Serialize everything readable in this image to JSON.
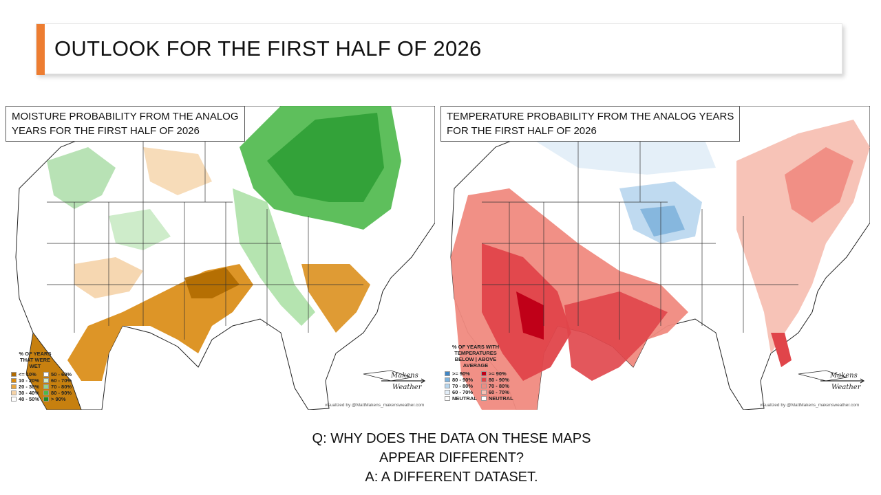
{
  "slide": {
    "title": "OUTLOOK FOR THE FIRST HALF OF 2026",
    "accent_color": "#ed7d31"
  },
  "maps": [
    {
      "title_line1": "MOISTURE PROBABILITY FROM THE ANALOG",
      "title_line2": "YEARS FOR THE FIRST HALF OF 2026",
      "legend_heading": [
        "% OF YEARS",
        "THAT WERE",
        "WET"
      ],
      "legend_left": [
        {
          "label": "<= 10%",
          "color": "#b06a00"
        },
        {
          "label": "10 - 20%",
          "color": "#d98a10"
        },
        {
          "label": "20 - 30%",
          "color": "#e8a540"
        },
        {
          "label": "30 - 40%",
          "color": "#f5d3a8"
        },
        {
          "label": "40 - 50%",
          "color": "#ffffff"
        }
      ],
      "legend_right": [
        {
          "label": "50 - 60%",
          "color": "#ffffff"
        },
        {
          "label": "60 - 70%",
          "color": "#cdebc9"
        },
        {
          "label": "70 - 80%",
          "color": "#8fd48a"
        },
        {
          "label": "80 - 90%",
          "color": "#4cb84a"
        },
        {
          "label": "> 90%",
          "color": "#1e8a22"
        }
      ],
      "brand": [
        "Makens",
        "Weather"
      ],
      "credit": "visualized by @MattMakens_makensweather.com"
    },
    {
      "title_line1": "TEMPERATURE PROBABILITY FROM THE ANALOG YEARS",
      "title_line2": "FOR THE FIRST HALF OF 2026",
      "legend_heading": [
        "% OF YEARS WITH",
        "TEMPERATURES",
        "BELOW | ABOVE",
        "AVERAGE"
      ],
      "legend_left": [
        {
          "label": ">= 90%",
          "color": "#3f86c6"
        },
        {
          "label": "80 - 90%",
          "color": "#7fb3dc"
        },
        {
          "label": "70 - 80%",
          "color": "#b8d6ee"
        },
        {
          "label": "60 - 70%",
          "color": "#e3eef8"
        },
        {
          "label": "NEUTRAL",
          "color": "#ffffff"
        }
      ],
      "legend_right": [
        {
          "label": ">= 90%",
          "color": "#c00018"
        },
        {
          "label": "80 - 90%",
          "color": "#e0454a"
        },
        {
          "label": "70 - 80%",
          "color": "#f08a80"
        },
        {
          "label": "60 - 70%",
          "color": "#f7c0b3"
        },
        {
          "label": "NEUTRAL",
          "color": "#ffffff"
        }
      ],
      "brand": [
        "Makens",
        "Weather"
      ],
      "credit": "visualized by @MattMakens_makensweather.com"
    }
  ],
  "qa": {
    "line1": "Q: WHY DOES THE DATA ON THESE MAPS",
    "line2": "APPEAR DIFFERENT?",
    "line3": "A: A DIFFERENT DATASET."
  }
}
